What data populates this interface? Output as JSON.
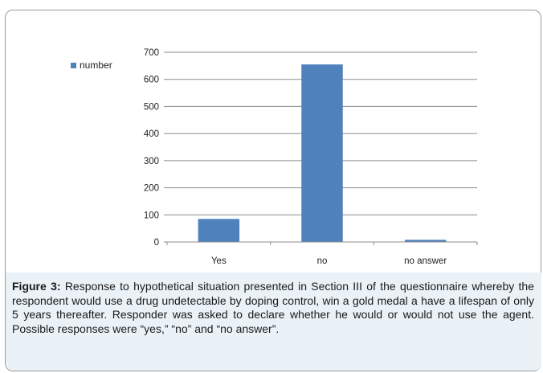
{
  "chart_data": {
    "type": "bar",
    "categories": [
      "Yes",
      "no",
      "no answer"
    ],
    "series": [
      {
        "name": "number",
        "values": [
          85,
          655,
          8
        ],
        "color": "#4f81bd"
      }
    ],
    "title": "",
    "xlabel": "",
    "ylabel": "",
    "ylim": [
      0,
      700
    ],
    "yticks": [
      0,
      100,
      200,
      300,
      400,
      500,
      600,
      700
    ],
    "grid": true,
    "legend_placement": "left"
  },
  "legend": {
    "label": "number",
    "color": "#4f81bd"
  },
  "caption": {
    "label": "Figure 3:",
    "text": " Response to hypothetical situation presented in Section III of the questionnaire whereby the respondent would use a drug undetectable by doping control, win a gold medal a have a lifespan of only 5 years thereafter. Responder was asked to declare whether he would or would not use the agent. Possible responses were “yes,” “no” and “no answer”."
  }
}
